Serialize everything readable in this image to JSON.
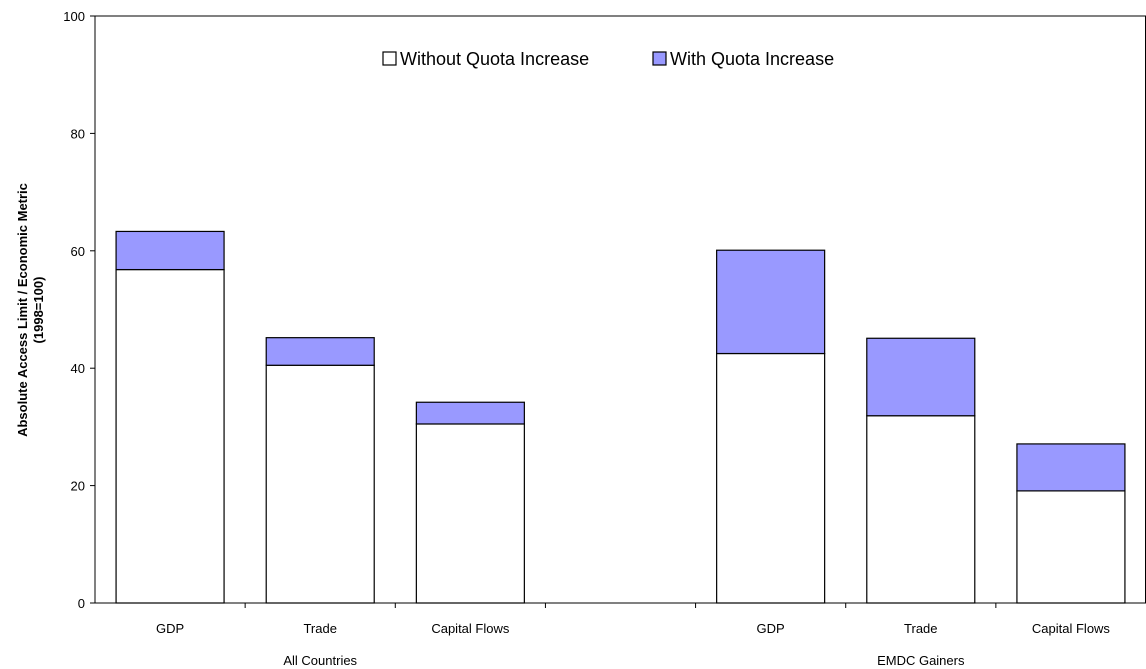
{
  "chart_data": {
    "type": "bar",
    "stacked": true,
    "ylabel_line1": "Absolute Access Limit / Economic Metric",
    "ylabel_line2": "(1998=100)",
    "ylim": [
      0,
      100
    ],
    "yticks": [
      0,
      20,
      40,
      60,
      80,
      100
    ],
    "groups": [
      "All Countries",
      "EMDC Gainers"
    ],
    "categories": [
      "GDP",
      "Trade",
      "Capital Flows",
      "GDP",
      "Trade",
      "Capital Flows"
    ],
    "group_of_category": [
      0,
      0,
      0,
      1,
      1,
      1
    ],
    "series": [
      {
        "name": "Without Quota Increase",
        "color": "#ffffff",
        "values": [
          56.8,
          40.5,
          30.5,
          42.5,
          31.9,
          19.1
        ]
      },
      {
        "name": "With Quota Increase",
        "color": "#9999ff",
        "values": [
          6.5,
          4.7,
          3.7,
          17.6,
          13.2,
          8.0
        ]
      }
    ],
    "legend_position": "top-center",
    "grid": false
  }
}
